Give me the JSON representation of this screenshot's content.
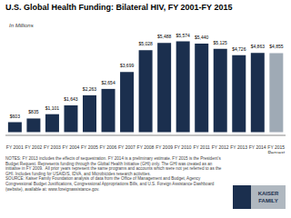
{
  "chart_data": {
    "type": "bar",
    "title": "U.S. Global Health Funding: Bilateral HIV, FY 2001-FY 2015",
    "subtitle": "In Millions",
    "categories": [
      "FY 2001",
      "FY 2002",
      "FY 2003",
      "FY 2004",
      "FY 2005",
      "FY 2006",
      "FY 2007",
      "FY 2008",
      "FY 2009",
      "FY 2010",
      "FY 2011",
      "FY 2012",
      "FY 2013",
      "FY 2014",
      "FY 2015"
    ],
    "values": [
      603,
      835,
      1101,
      1643,
      2263,
      2654,
      3699,
      5028,
      5488,
      5574,
      5440,
      5125,
      4726,
      4863,
      4855
    ],
    "value_labels": [
      "$603",
      "$835",
      "$1,101",
      "$1,643",
      "$2,263",
      "$2,654",
      "$3,699",
      "$5,028",
      "$5,488",
      "$5,574",
      "$5,440",
      "$5,125",
      "$4,726",
      "$4,863",
      "$4,855"
    ],
    "data_labels": true,
    "colors": [
      "#1b2f4e",
      "#1b2f4e",
      "#1b2f4e",
      "#1b2f4e",
      "#1b2f4e",
      "#1b2f4e",
      "#1b2f4e",
      "#1b2f4e",
      "#1b2f4e",
      "#1b2f4e",
      "#1b2f4e",
      "#1b2f4e",
      "#1b2f4e",
      "#1b2f4e",
      "#9faab5"
    ],
    "ylim": [
      -200,
      6500
    ],
    "yticks": [],
    "tick_labels": "x",
    "grid": false,
    "annotations": [
      {
        "category": "FY 2015",
        "text": "Request"
      },
      {
        "text": "KAISER"
      },
      {
        "text": "FAMILY"
      }
    ],
    "note": "NOTES: FY 2013 includes the effects of sequestration. FY 2014 is a preliminary estimate. FY 2015 is the President's Budget Request. Represents funding through the Global Health Initiative (GHI) only. The GHI was created as an initiative in FY 2009.  All prior years represent the same programs and accounts which were not yet referred to as the GHI. Includes funding for USAID/S, IDVA, and Microbicides research activities.\nSOURCE: Kaiser Family Foundation analysis of data from the Office of Management and Budget, Agency Congressional Budget Justifications, Congressional Appropriations Bills, and U.S. Foreign Assistance Dashboard (website), available at: www.foreignassistance.gov."
  }
}
